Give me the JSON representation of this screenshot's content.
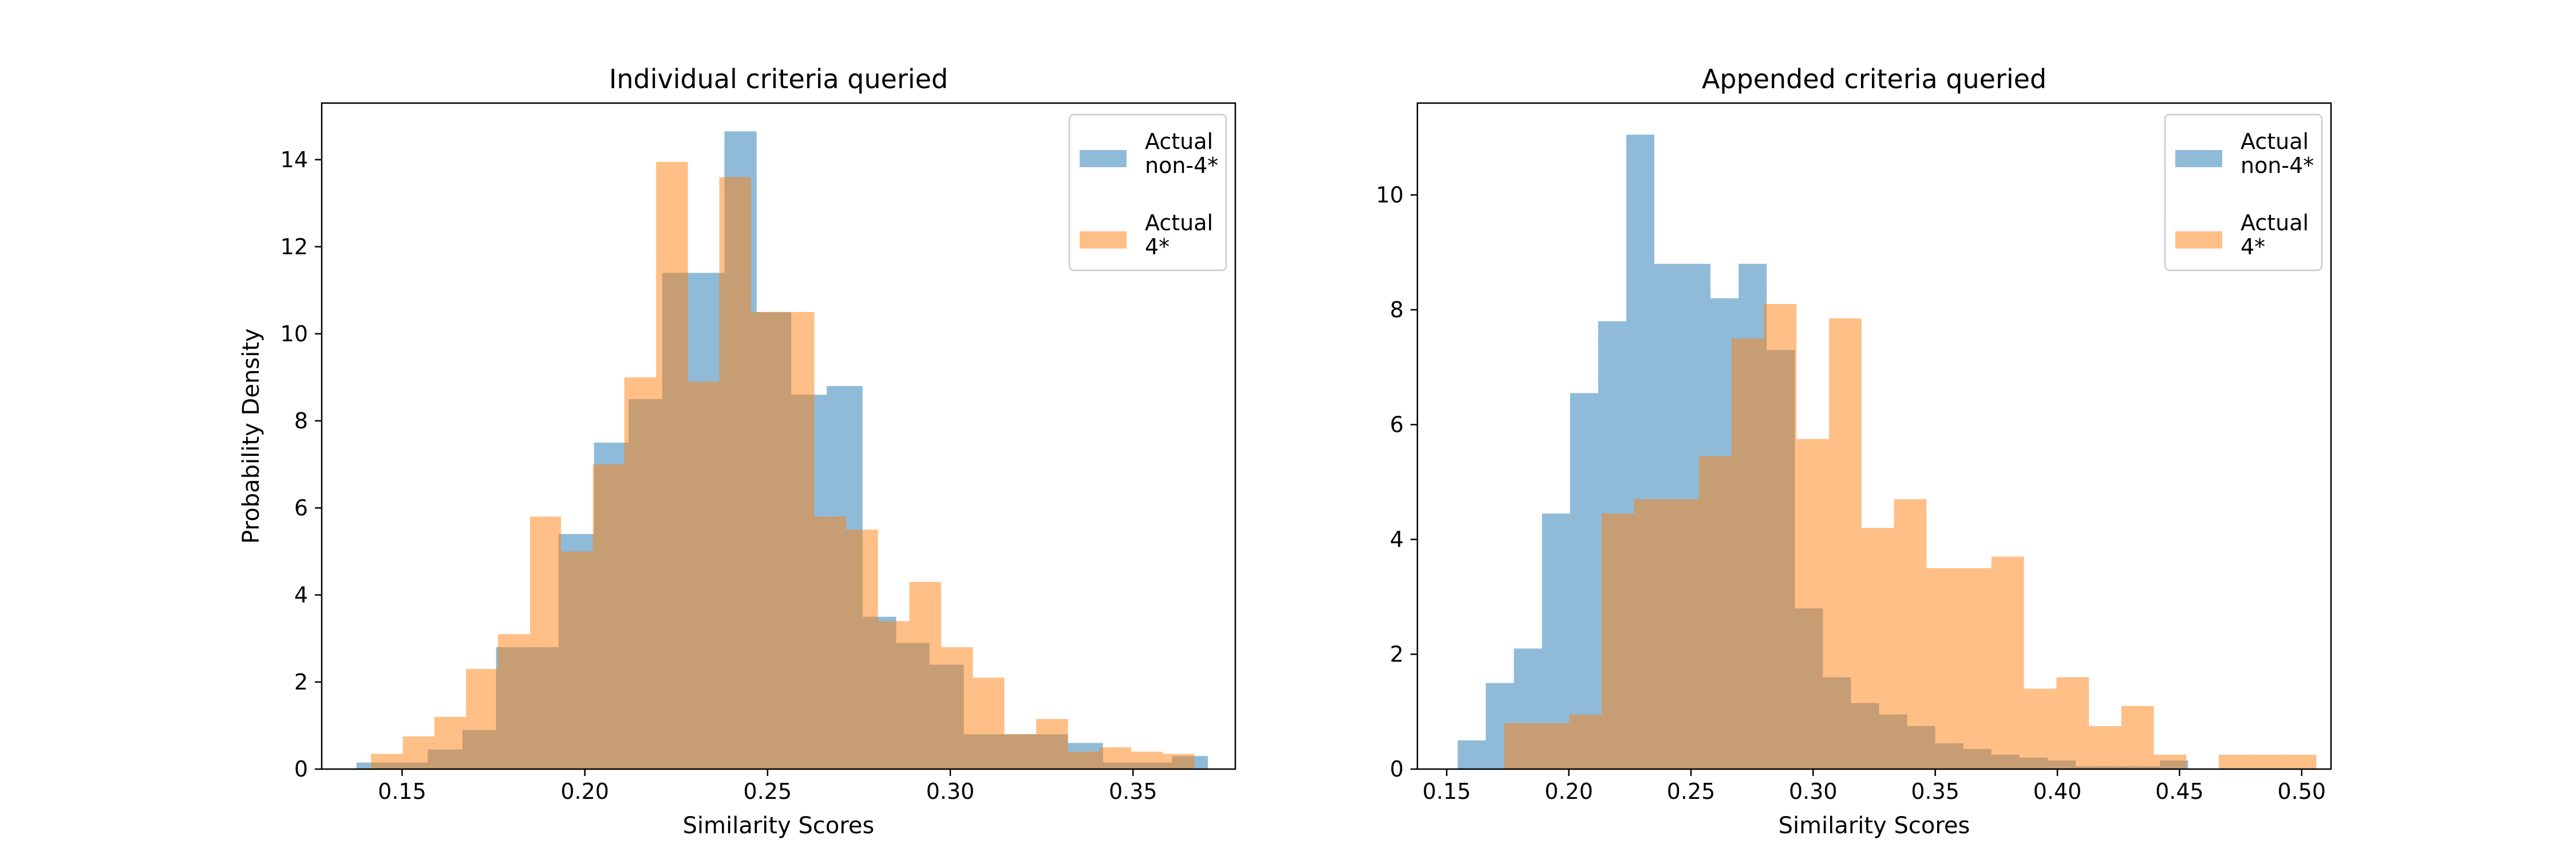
{
  "chart_data": [
    {
      "type": "histogram",
      "title": "Individual criteria queried",
      "xlabel": "Similarity Scores",
      "ylabel": "Probability Density",
      "xlim": [
        0.128,
        0.378
      ],
      "ylim": [
        0,
        15.3
      ],
      "xticks": [
        0.15,
        0.2,
        0.25,
        0.3,
        0.35
      ],
      "xtick_labels": [
        "0.15",
        "0.20",
        "0.25",
        "0.30",
        "0.35"
      ],
      "yticks": [
        0,
        2,
        4,
        6,
        8,
        10,
        12,
        14
      ],
      "ytick_labels": [
        "0",
        "2",
        "4",
        "6",
        "8",
        "10",
        "12",
        "14"
      ],
      "grid": false,
      "legend_position": "top-right",
      "series": [
        {
          "name": "Actual\nnon-4*",
          "color": "#1f77b4",
          "alpha": 0.5,
          "bins": [
            [
              0.1375,
              0.142,
              0.15
            ],
            [
              0.142,
              0.15,
              0.15
            ],
            [
              0.15,
              0.157,
              0.15
            ],
            [
              0.157,
              0.1665,
              0.45
            ],
            [
              0.1665,
              0.1757,
              0.9
            ],
            [
              0.1757,
              0.1755,
              2.8
            ],
            [
              0.1757,
              0.1928,
              2.8
            ],
            [
              0.1928,
              0.2025,
              5.4
            ],
            [
              0.2025,
              0.212,
              7.5
            ],
            [
              0.212,
              0.2212,
              8.5
            ],
            [
              0.2212,
              0.2298,
              11.4
            ],
            [
              0.2298,
              0.2382,
              11.4
            ],
            [
              0.2382,
              0.247,
              14.65
            ],
            [
              0.247,
              0.2565,
              10.5
            ],
            [
              0.2565,
              0.2662,
              8.6
            ],
            [
              0.2662,
              0.276,
              8.8
            ],
            [
              0.276,
              0.2852,
              3.5
            ],
            [
              0.2852,
              0.2943,
              2.9
            ],
            [
              0.2943,
              0.3037,
              2.4
            ],
            [
              0.3037,
              0.3133,
              0.8
            ],
            [
              0.3133,
              0.3228,
              0.8
            ],
            [
              0.3228,
              0.3322,
              0.8
            ],
            [
              0.3322,
              0.3418,
              0.6
            ],
            [
              0.3418,
              0.3513,
              0.15
            ],
            [
              0.3513,
              0.3607,
              0.15
            ],
            [
              0.3607,
              0.3705,
              0.3
            ]
          ]
        },
        {
          "name": "Actual\n4*",
          "color": "#ff7f0e",
          "alpha": 0.5,
          "bins": [
            [
              0.1415,
              0.1502,
              0.35
            ],
            [
              0.1502,
              0.1588,
              0.75
            ],
            [
              0.1588,
              0.1675,
              1.2
            ],
            [
              0.1675,
              0.1762,
              2.3
            ],
            [
              0.1762,
              0.185,
              3.1
            ],
            [
              0.185,
              0.1935,
              5.8
            ],
            [
              0.1935,
              0.2022,
              5.0
            ],
            [
              0.2022,
              0.2108,
              7.0
            ],
            [
              0.2108,
              0.2195,
              9.0
            ],
            [
              0.2195,
              0.2282,
              13.95
            ],
            [
              0.2282,
              0.2368,
              8.9
            ],
            [
              0.2368,
              0.2455,
              13.6
            ],
            [
              0.2455,
              0.2542,
              10.5
            ],
            [
              0.2542,
              0.2628,
              10.5
            ],
            [
              0.2628,
              0.2715,
              5.8
            ],
            [
              0.2715,
              0.2802,
              5.5
            ],
            [
              0.2802,
              0.2888,
              3.4
            ],
            [
              0.2888,
              0.2975,
              4.3
            ],
            [
              0.2975,
              0.3062,
              2.8
            ],
            [
              0.3062,
              0.3148,
              2.1
            ],
            [
              0.3148,
              0.3235,
              0.8
            ],
            [
              0.3235,
              0.3322,
              1.15
            ],
            [
              0.3322,
              0.3408,
              0.4
            ],
            [
              0.3408,
              0.3495,
              0.5
            ],
            [
              0.3495,
              0.3582,
              0.4
            ],
            [
              0.3582,
              0.3668,
              0.35
            ]
          ]
        }
      ]
    },
    {
      "type": "histogram",
      "title": "Appended criteria queried",
      "xlabel": "Similarity Scores",
      "ylabel": "",
      "xlim": [
        0.138,
        0.512
      ],
      "ylim": [
        0,
        11.6
      ],
      "xticks": [
        0.15,
        0.2,
        0.25,
        0.3,
        0.35,
        0.4,
        0.45,
        0.5
      ],
      "xtick_labels": [
        "0.15",
        "0.20",
        "0.25",
        "0.30",
        "0.35",
        "0.40",
        "0.45",
        "0.50"
      ],
      "yticks": [
        0,
        2,
        4,
        6,
        8,
        10
      ],
      "ytick_labels": [
        "0",
        "2",
        "4",
        "6",
        "8",
        "10"
      ],
      "grid": false,
      "legend_position": "top-right",
      "series": [
        {
          "name": "Actual\nnon-4*",
          "color": "#1f77b4",
          "alpha": 0.5,
          "bins": [
            [
              0.1545,
              0.166,
              0.5
            ],
            [
              0.166,
              0.1775,
              1.5
            ],
            [
              0.1775,
              0.189,
              2.1
            ],
            [
              0.189,
              0.2005,
              4.45
            ],
            [
              0.2005,
              0.212,
              6.55
            ],
            [
              0.212,
              0.2235,
              7.8
            ],
            [
              0.2235,
              0.235,
              11.05
            ],
            [
              0.235,
              0.2465,
              8.8
            ],
            [
              0.2465,
              0.258,
              8.8
            ],
            [
              0.258,
              0.2695,
              8.2
            ],
            [
              0.2695,
              0.281,
              8.8
            ],
            [
              0.281,
              0.2925,
              7.3
            ],
            [
              0.2925,
              0.304,
              2.8
            ],
            [
              0.304,
              0.3155,
              1.6
            ],
            [
              0.3155,
              0.327,
              1.15
            ],
            [
              0.327,
              0.3385,
              0.95
            ],
            [
              0.3385,
              0.35,
              0.75
            ],
            [
              0.35,
              0.3615,
              0.45
            ],
            [
              0.3615,
              0.373,
              0.35
            ],
            [
              0.373,
              0.3845,
              0.25
            ],
            [
              0.3845,
              0.396,
              0.2
            ],
            [
              0.396,
              0.4075,
              0.15
            ],
            [
              0.4075,
              0.419,
              0.05
            ],
            [
              0.419,
              0.4305,
              0.05
            ],
            [
              0.4305,
              0.442,
              0.05
            ],
            [
              0.442,
              0.4535,
              0.15
            ]
          ]
        },
        {
          "name": "Actual\n4*",
          "color": "#ff7f0e",
          "alpha": 0.5,
          "bins": [
            [
              0.1735,
              0.1868,
              0.8
            ],
            [
              0.1868,
              0.2001,
              0.8
            ],
            [
              0.2001,
              0.2134,
              0.95
            ],
            [
              0.2134,
              0.2267,
              4.45
            ],
            [
              0.2267,
              0.24,
              4.7
            ],
            [
              0.24,
              0.2533,
              4.7
            ],
            [
              0.2533,
              0.2666,
              5.45
            ],
            [
              0.2666,
              0.2799,
              7.5
            ],
            [
              0.2799,
              0.2932,
              8.1
            ],
            [
              0.2932,
              0.3065,
              5.75
            ],
            [
              0.3065,
              0.3198,
              7.85
            ],
            [
              0.3198,
              0.3331,
              4.2
            ],
            [
              0.3331,
              0.3464,
              4.7
            ],
            [
              0.3464,
              0.3597,
              3.5
            ],
            [
              0.3597,
              0.373,
              3.5
            ],
            [
              0.373,
              0.3863,
              3.7
            ],
            [
              0.3863,
              0.3996,
              1.4
            ],
            [
              0.3996,
              0.4129,
              1.6
            ],
            [
              0.4129,
              0.4262,
              0.75
            ],
            [
              0.4262,
              0.4395,
              1.1
            ],
            [
              0.4395,
              0.4528,
              0.25
            ],
            [
              0.4528,
              0.4661,
              0.0
            ],
            [
              0.4661,
              0.4794,
              0.25
            ],
            [
              0.4794,
              0.4927,
              0.25
            ],
            [
              0.4927,
              0.506,
              0.25
            ]
          ]
        }
      ]
    }
  ]
}
